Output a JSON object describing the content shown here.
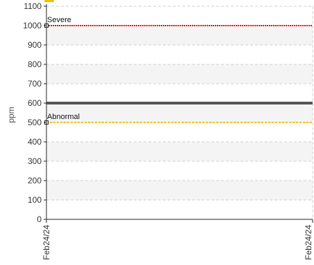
{
  "legend": {
    "swatch_color": "#f2c200"
  },
  "chart_data": {
    "type": "line",
    "ylabel": "ppm",
    "xlabel": "",
    "ylim": [
      0,
      1100
    ],
    "yticks": [
      0,
      100,
      200,
      300,
      400,
      500,
      600,
      700,
      800,
      900,
      1000,
      1100
    ],
    "x_ticks": [
      "Feb24/24",
      "Feb24/24"
    ],
    "grid": true,
    "thresholds": [
      {
        "label": "Severe",
        "value": 1000,
        "color": "#e8151b",
        "style": "dotted"
      },
      {
        "label": "Abnormal",
        "value": 500,
        "color": "#f2c200",
        "style": "dashed"
      }
    ],
    "series": [
      {
        "values": [
          600,
          600
        ],
        "color": "#555555"
      }
    ]
  }
}
